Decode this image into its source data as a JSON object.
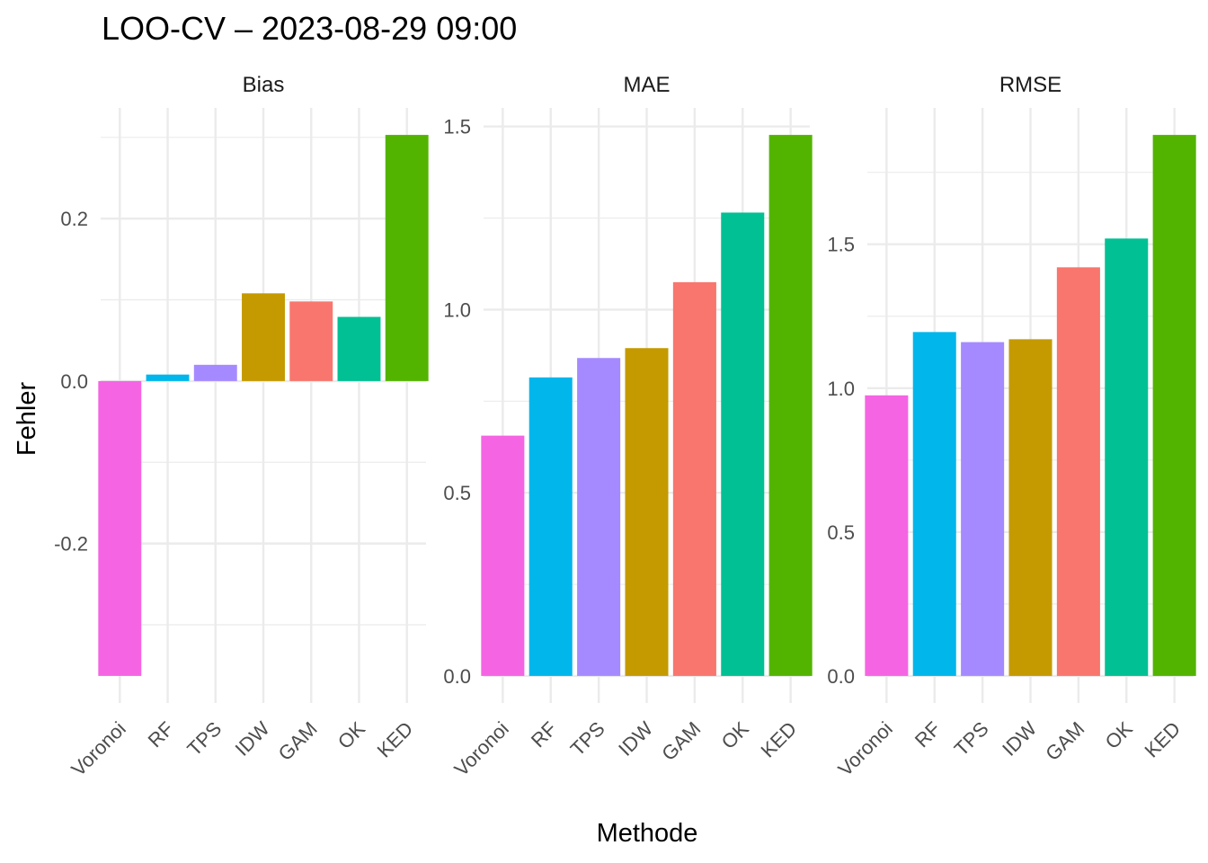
{
  "chart_data": {
    "type": "bar",
    "title": "LOO-CV – 2023-08-29 09:00",
    "xlabel": "Methode",
    "ylabel": "Fehler",
    "categories": [
      "Voronoi",
      "RF",
      "TPS",
      "IDW",
      "GAM",
      "OK",
      "KED"
    ],
    "colors": {
      "Voronoi": "#F564E3",
      "RF": "#00B6EB",
      "TPS": "#A58AFF",
      "IDW": "#C49A00",
      "GAM": "#F8766D",
      "OK": "#00C094",
      "KED": "#53B400"
    },
    "grid": true,
    "facets": [
      {
        "name": "Bias",
        "values": [
          -0.363,
          0.008,
          0.02,
          0.108,
          0.098,
          0.079,
          0.303
        ],
        "ylim": [
          -0.363,
          0.303
        ],
        "yticks": [
          -0.2,
          0.0,
          0.2
        ],
        "ytick_labels": [
          "-0.2",
          "0.0",
          "0.2"
        ]
      },
      {
        "name": "MAE",
        "values": [
          0.656,
          0.815,
          0.868,
          0.895,
          1.075,
          1.265,
          1.477
        ],
        "ylim": [
          0,
          1.477
        ],
        "yticks": [
          0.0,
          0.5,
          1.0,
          1.5
        ],
        "ytick_labels": [
          "0.0",
          "0.5",
          "1.0",
          "1.5"
        ]
      },
      {
        "name": "RMSE",
        "values": [
          0.975,
          1.195,
          1.16,
          1.17,
          1.42,
          1.52,
          1.88
        ],
        "ylim": [
          0,
          1.88
        ],
        "yticks": [
          0.0,
          0.5,
          1.0,
          1.5
        ],
        "ytick_labels": [
          "0.0",
          "0.5",
          "1.0",
          "1.5"
        ]
      }
    ]
  }
}
